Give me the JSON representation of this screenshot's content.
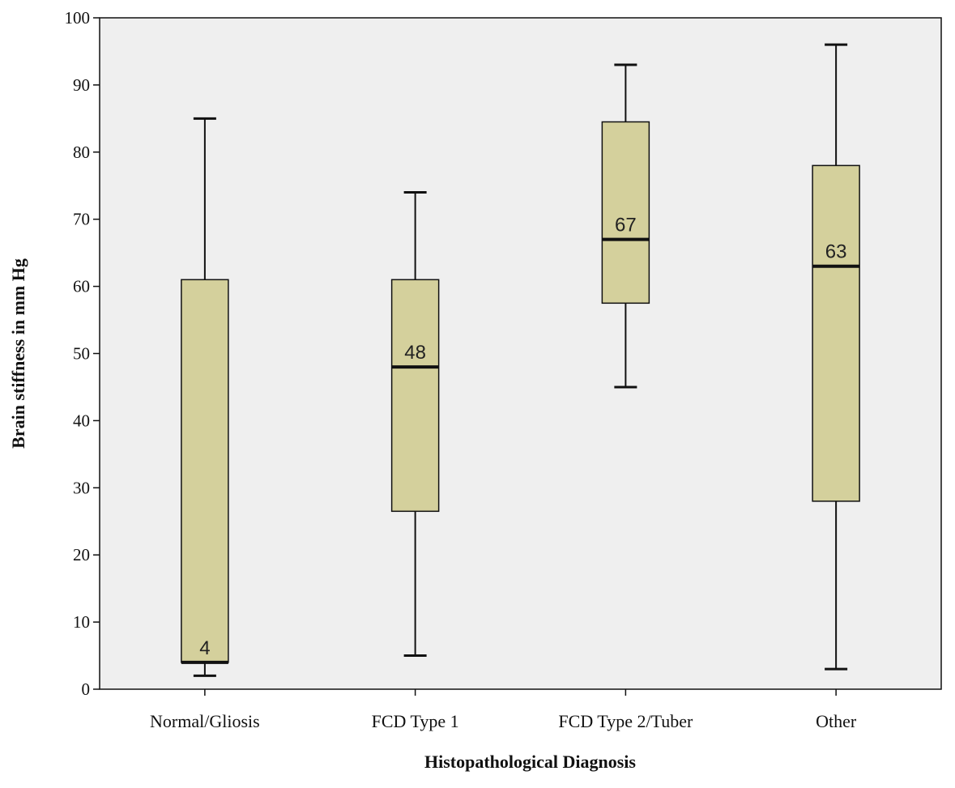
{
  "chart_data": {
    "type": "box",
    "title": "",
    "xlabel": "Histopathological Diagnosis",
    "ylabel": "Brain stiffness in mm Hg",
    "ylim": [
      0,
      100
    ],
    "yticks": [
      0,
      10,
      20,
      30,
      40,
      50,
      60,
      70,
      80,
      90,
      100
    ],
    "grid": false,
    "categories": [
      "Normal/Gliosis",
      "FCD Type 1",
      "FCD Type 2/Tuber",
      "Other"
    ],
    "boxes": [
      {
        "min": 2,
        "q1": 4,
        "median": 4,
        "q3": 61,
        "max": 85,
        "median_label": "4"
      },
      {
        "min": 5,
        "q1": 26.5,
        "median": 48,
        "q3": 61,
        "max": 74,
        "median_label": "48"
      },
      {
        "min": 45,
        "q1": 57.5,
        "median": 67,
        "q3": 84.5,
        "max": 93,
        "median_label": "67"
      },
      {
        "min": 3,
        "q1": 28,
        "median": 63,
        "q3": 78,
        "max": 96,
        "median_label": "63"
      }
    ],
    "colors": {
      "plot_background": "#efefef",
      "box_fill": "#d4d09c",
      "line": "#111111"
    }
  }
}
